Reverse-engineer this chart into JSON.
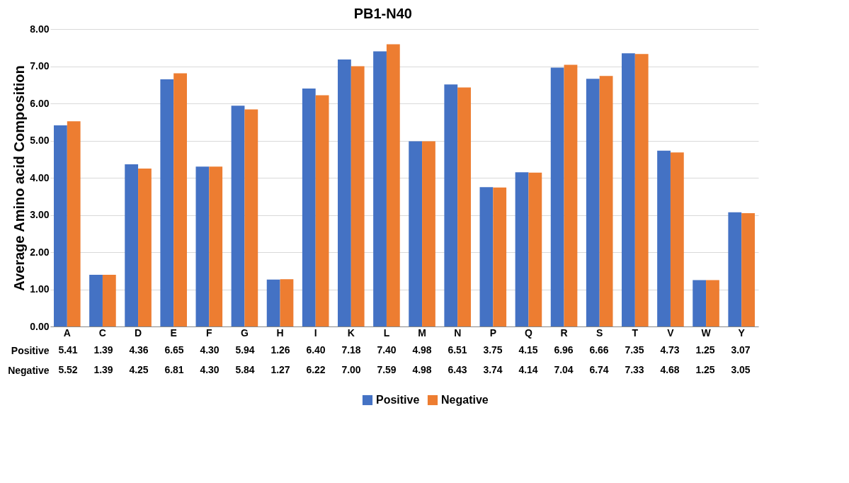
{
  "chart_data": {
    "type": "bar",
    "title": "PB1-N40",
    "ylabel": "Average Amino acid Composition",
    "categories": [
      "A",
      "C",
      "D",
      "E",
      "F",
      "G",
      "H",
      "I",
      "K",
      "L",
      "M",
      "N",
      "P",
      "Q",
      "R",
      "S",
      "T",
      "V",
      "W",
      "Y"
    ],
    "series": [
      {
        "name": "Positive",
        "color": "#4472c4",
        "values": [
          5.41,
          1.39,
          4.36,
          6.65,
          4.3,
          5.94,
          1.26,
          6.4,
          7.18,
          7.4,
          4.98,
          6.51,
          3.75,
          4.15,
          6.96,
          6.66,
          7.35,
          4.73,
          1.25,
          3.07
        ],
        "value_labels": [
          "5.41",
          "1.39",
          "4.36",
          "6.65",
          "4.30",
          "5.94",
          "1.26",
          "6.40",
          "7.18",
          "7.40",
          "4.98",
          "6.51",
          "3.75",
          "4.15",
          "6.96",
          "6.66",
          "7.35",
          "4.73",
          "1.25",
          "3.07"
        ]
      },
      {
        "name": "Negative",
        "color": "#ed7d31",
        "values": [
          5.52,
          1.39,
          4.25,
          6.81,
          4.3,
          5.84,
          1.27,
          6.22,
          7.0,
          7.59,
          4.98,
          6.43,
          3.74,
          4.14,
          7.04,
          6.74,
          7.33,
          4.68,
          1.25,
          3.05
        ],
        "value_labels": [
          "5.52",
          "1.39",
          "4.25",
          "6.81",
          "4.30",
          "5.84",
          "1.27",
          "6.22",
          "7.00",
          "7.59",
          "4.98",
          "6.43",
          "3.74",
          "4.14",
          "7.04",
          "6.74",
          "7.33",
          "4.68",
          "1.25",
          "3.05"
        ]
      }
    ],
    "ylim": [
      0,
      8
    ],
    "yticks": [
      {
        "value": 0,
        "label": "0.00"
      },
      {
        "value": 1,
        "label": "1.00"
      },
      {
        "value": 2,
        "label": "2.00"
      },
      {
        "value": 3,
        "label": "3.00"
      },
      {
        "value": 4,
        "label": "4.00"
      },
      {
        "value": 5,
        "label": "5.00"
      },
      {
        "value": 6,
        "label": "6.00"
      },
      {
        "value": 7,
        "label": "7.00"
      },
      {
        "value": 8,
        "label": "8.00"
      }
    ],
    "grid": "y",
    "legend": "bottom"
  }
}
